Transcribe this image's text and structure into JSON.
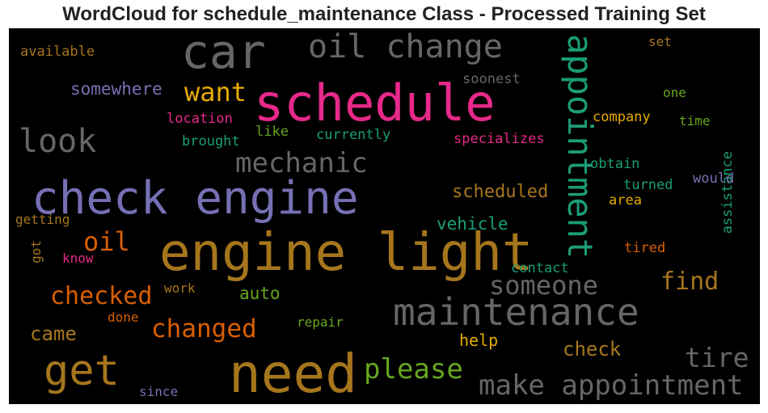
{
  "title": "WordCloud for schedule_maintenance Class - Processed Training Set",
  "chart_data": {
    "type": "wordcloud",
    "title": "WordCloud for schedule_maintenance Class - Processed Training Set",
    "background": "#000000",
    "words": [
      {
        "text": "schedule",
        "weight": 1.0,
        "color": "#e7298a"
      },
      {
        "text": "engine light",
        "weight": 0.95,
        "color": "#a6761d"
      },
      {
        "text": "check engine",
        "weight": 0.9,
        "color": "#7570b3"
      },
      {
        "text": "need",
        "weight": 0.88,
        "color": "#a6761d"
      },
      {
        "text": "car",
        "weight": 0.8,
        "color": "#666666"
      },
      {
        "text": "get",
        "weight": 0.75,
        "color": "#a6761d"
      },
      {
        "text": "maintenance",
        "weight": 0.72,
        "color": "#666666"
      },
      {
        "text": "appointment",
        "weight": 0.7,
        "color": "#1b9e77"
      },
      {
        "text": "oil change",
        "weight": 0.6,
        "color": "#666666"
      },
      {
        "text": "look",
        "weight": 0.55,
        "color": "#666666"
      },
      {
        "text": "make appointment",
        "weight": 0.5,
        "color": "#666666"
      },
      {
        "text": "please",
        "weight": 0.5,
        "color": "#66a61e"
      },
      {
        "text": "mechanic",
        "weight": 0.48,
        "color": "#666666"
      },
      {
        "text": "tire",
        "weight": 0.46,
        "color": "#666666"
      },
      {
        "text": "someone",
        "weight": 0.45,
        "color": "#666666"
      },
      {
        "text": "want",
        "weight": 0.45,
        "color": "#e6ab02"
      },
      {
        "text": "oil",
        "weight": 0.42,
        "color": "#d95f02"
      },
      {
        "text": "changed",
        "weight": 0.42,
        "color": "#d95f02"
      },
      {
        "text": "find",
        "weight": 0.4,
        "color": "#a6761d"
      },
      {
        "text": "checked",
        "weight": 0.4,
        "color": "#d95f02"
      },
      {
        "text": "scheduled",
        "weight": 0.3,
        "color": "#a6761d"
      },
      {
        "text": "check",
        "weight": 0.3,
        "color": "#a6761d"
      },
      {
        "text": "came",
        "weight": 0.3,
        "color": "#a6761d"
      },
      {
        "text": "vehicle",
        "weight": 0.28,
        "color": "#1b9e77"
      },
      {
        "text": "somewhere",
        "weight": 0.28,
        "color": "#7570b3"
      },
      {
        "text": "auto",
        "weight": 0.28,
        "color": "#66a61e"
      },
      {
        "text": "help",
        "weight": 0.26,
        "color": "#e6ab02"
      },
      {
        "text": "specializes",
        "weight": 0.24,
        "color": "#e7298a"
      },
      {
        "text": "currently",
        "weight": 0.24,
        "color": "#1b9e77"
      },
      {
        "text": "company",
        "weight": 0.24,
        "color": "#e6ab02"
      },
      {
        "text": "location",
        "weight": 0.24,
        "color": "#e7298a"
      },
      {
        "text": "brought",
        "weight": 0.22,
        "color": "#1b9e77"
      },
      {
        "text": "assistance",
        "weight": 0.22,
        "color": "#1b9e77"
      },
      {
        "text": "available",
        "weight": 0.22,
        "color": "#a6761d"
      },
      {
        "text": "soonest",
        "weight": 0.22,
        "color": "#666666"
      },
      {
        "text": "like",
        "weight": 0.22,
        "color": "#66a61e"
      },
      {
        "text": "turned",
        "weight": 0.22,
        "color": "#1b9e77"
      },
      {
        "text": "obtain",
        "weight": 0.22,
        "color": "#1b9e77"
      },
      {
        "text": "would",
        "weight": 0.22,
        "color": "#7570b3"
      },
      {
        "text": "area",
        "weight": 0.22,
        "color": "#e6ab02"
      },
      {
        "text": "tired",
        "weight": 0.22,
        "color": "#d95f02"
      },
      {
        "text": "contact",
        "weight": 0.22,
        "color": "#1b9e77"
      },
      {
        "text": "repair",
        "weight": 0.2,
        "color": "#66a61e"
      },
      {
        "text": "time",
        "weight": 0.2,
        "color": "#66a61e"
      },
      {
        "text": "one",
        "weight": 0.2,
        "color": "#66a61e"
      },
      {
        "text": "set",
        "weight": 0.2,
        "color": "#a6761d"
      },
      {
        "text": "getting",
        "weight": 0.2,
        "color": "#a6761d"
      },
      {
        "text": "got",
        "weight": 0.2,
        "color": "#a6761d"
      },
      {
        "text": "know",
        "weight": 0.2,
        "color": "#e7298a"
      },
      {
        "text": "work",
        "weight": 0.2,
        "color": "#a6761d"
      },
      {
        "text": "done",
        "weight": 0.2,
        "color": "#d95f02"
      },
      {
        "text": "since",
        "weight": 0.2,
        "color": "#7570b3"
      }
    ]
  }
}
